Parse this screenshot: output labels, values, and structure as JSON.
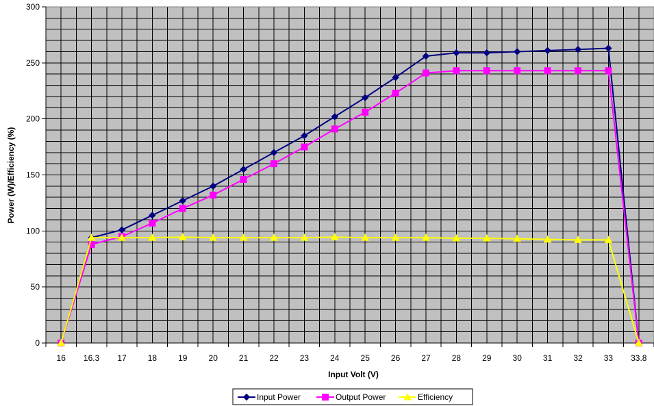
{
  "chart_data": {
    "type": "line",
    "categories": [
      "16",
      "16.3",
      "17",
      "18",
      "19",
      "20",
      "21",
      "22",
      "23",
      "24",
      "25",
      "26",
      "27",
      "28",
      "29",
      "30",
      "31",
      "32",
      "33",
      "33.8"
    ],
    "xlabel": "Input Volt (V)",
    "ylabel": "Power (W)/Efficiency (%)",
    "ylim": [
      0,
      300
    ],
    "yticks": [
      0,
      50,
      100,
      150,
      200,
      250,
      300
    ],
    "grid": true,
    "plot_background": "#c0c0c0",
    "legend_position": "bottom",
    "series": [
      {
        "name": "Input Power",
        "color": "#000080",
        "marker": "diamond",
        "values": [
          0,
          94,
          101,
          114,
          127,
          140,
          155,
          170,
          185,
          202,
          219,
          237,
          256,
          259,
          259,
          260,
          261,
          262,
          263,
          0
        ]
      },
      {
        "name": "Output Power",
        "color": "#ff00ff",
        "marker": "square",
        "values": [
          0,
          88,
          95,
          107,
          120,
          132,
          146,
          160,
          175,
          191,
          206,
          223,
          241,
          243,
          243,
          243,
          243,
          243,
          243,
          0
        ]
      },
      {
        "name": "Efficiency",
        "color": "#ffff00",
        "marker": "triangle",
        "values": [
          0,
          94,
          94,
          94,
          94.5,
          94,
          94,
          94,
          94,
          94.5,
          94,
          94,
          94,
          93.5,
          93.5,
          93,
          92.5,
          92,
          92,
          0
        ]
      }
    ]
  }
}
